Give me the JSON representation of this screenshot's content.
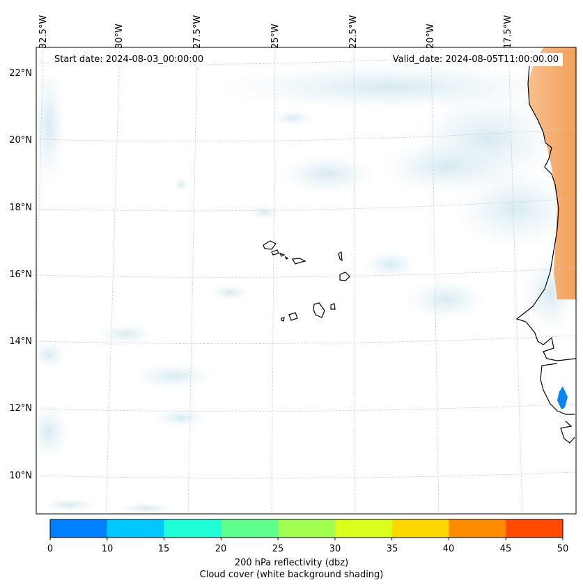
{
  "map": {
    "start_date": "Start date: 2024-08-03_00:00:00",
    "valid_date": "Valid_date: 2024-08-05T11:00:00.00",
    "lon_labels": [
      "32.5°W",
      "30°W",
      "27.5°W",
      "25°W",
      "22.5°W",
      "20°W",
      "17.5°W"
    ],
    "lat_labels": [
      "22°N",
      "20°N",
      "18°N",
      "16°N",
      "14°N",
      "12°N",
      "10°N"
    ]
  },
  "colorbar": {
    "ticks": [
      "0",
      "10",
      "15",
      "20",
      "25",
      "30",
      "35",
      "40",
      "45",
      "50"
    ],
    "colors": [
      "#0080ff",
      "#00c8ff",
      "#1effd8",
      "#5eff8c",
      "#a0ff50",
      "#dcff1e",
      "#ffd800",
      "#ff8c00",
      "#ff4a00"
    ],
    "label_line1": "200 hPa reflectivity (dbz)",
    "label_line2": "Cloud cover (white background shading)"
  },
  "colors": {
    "cloud": "#d8ecf2",
    "land_warm": "#f5a35c",
    "reflectivity_cell": "#0a84f0"
  }
}
